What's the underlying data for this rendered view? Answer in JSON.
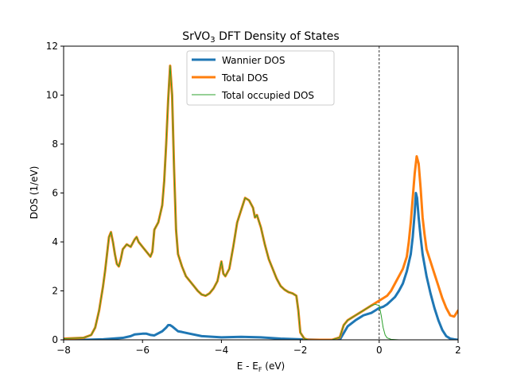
{
  "chart_data": {
    "type": "line",
    "title": "SrVO",
    "title_subscript": "3",
    "title_suffix": " DFT Density of States",
    "xlabel_main": "E - E",
    "xlabel_sub": "F",
    "xlabel_suffix": " (eV)",
    "ylabel": "DOS (1/eV)",
    "xlim": [
      -8,
      2
    ],
    "ylim": [
      0,
      12
    ],
    "xticks": [
      -8,
      -6,
      -4,
      -2,
      0,
      2
    ],
    "xtick_labels": [
      "−8",
      "−6",
      "−4",
      "−2",
      "0",
      "2"
    ],
    "yticks": [
      0,
      2,
      4,
      6,
      8,
      10,
      12
    ],
    "ytick_labels": [
      "0",
      "2",
      "4",
      "6",
      "8",
      "10",
      "12"
    ],
    "fermi_line_x": 0,
    "grid": false,
    "legend_position": "top-center",
    "series": [
      {
        "name": "Wannier DOS",
        "color": "#1f77b4",
        "width": 3,
        "x": [
          -8,
          -7.5,
          -7,
          -6.5,
          -6.3,
          -6.2,
          -6.0,
          -5.9,
          -5.8,
          -5.7,
          -5.5,
          -5.4,
          -5.35,
          -5.3,
          -5.25,
          -5.1,
          -5.0,
          -4.8,
          -4.5,
          -4.0,
          -3.5,
          -3.0,
          -2.5,
          -2.0,
          -1.5,
          -1.0,
          -0.8,
          -0.6,
          -0.5,
          -0.4,
          -0.3,
          -0.2,
          -0.1,
          0,
          0.1,
          0.2,
          0.3,
          0.4,
          0.5,
          0.6,
          0.7,
          0.8,
          0.85,
          0.9,
          0.93,
          0.96,
          1.0,
          1.05,
          1.1,
          1.2,
          1.3,
          1.4,
          1.5,
          1.6,
          1.7,
          1.8,
          1.9,
          2.0
        ],
        "values": [
          0.0,
          0.0,
          0.02,
          0.08,
          0.15,
          0.22,
          0.25,
          0.25,
          0.2,
          0.18,
          0.35,
          0.5,
          0.6,
          0.6,
          0.55,
          0.35,
          0.32,
          0.25,
          0.15,
          0.1,
          0.12,
          0.1,
          0.05,
          0.02,
          0.0,
          0.0,
          0.55,
          0.8,
          0.9,
          1.0,
          1.05,
          1.1,
          1.2,
          1.3,
          1.35,
          1.45,
          1.6,
          1.75,
          2.0,
          2.3,
          2.8,
          3.5,
          4.2,
          5.2,
          6.0,
          5.8,
          5.0,
          4.2,
          3.5,
          2.6,
          1.9,
          1.3,
          0.8,
          0.4,
          0.15,
          0.05,
          0.02,
          0.0
        ]
      },
      {
        "name": "Total DOS",
        "color": "#ff7f0e",
        "width": 3,
        "x": [
          -8,
          -7.5,
          -7.3,
          -7.2,
          -7.1,
          -7.0,
          -6.95,
          -6.9,
          -6.85,
          -6.8,
          -6.75,
          -6.7,
          -6.65,
          -6.6,
          -6.55,
          -6.5,
          -6.4,
          -6.3,
          -6.2,
          -6.15,
          -6.1,
          -6.05,
          -6.0,
          -5.9,
          -5.8,
          -5.75,
          -5.7,
          -5.6,
          -5.5,
          -5.45,
          -5.4,
          -5.35,
          -5.3,
          -5.25,
          -5.2,
          -5.15,
          -5.1,
          -5.0,
          -4.9,
          -4.8,
          -4.7,
          -4.6,
          -4.5,
          -4.4,
          -4.3,
          -4.2,
          -4.1,
          -4.05,
          -4.0,
          -3.95,
          -3.9,
          -3.8,
          -3.7,
          -3.6,
          -3.5,
          -3.4,
          -3.3,
          -3.2,
          -3.15,
          -3.1,
          -3.0,
          -2.9,
          -2.8,
          -2.7,
          -2.6,
          -2.5,
          -2.4,
          -2.3,
          -2.2,
          -2.1,
          -2.05,
          -2.0,
          -1.9,
          -1.8,
          -1.5,
          -1.2,
          -1.0,
          -0.9,
          -0.8,
          -0.7,
          -0.6,
          -0.5,
          -0.4,
          -0.3,
          -0.2,
          -0.1,
          0,
          0.1,
          0.2,
          0.3,
          0.4,
          0.5,
          0.6,
          0.7,
          0.75,
          0.8,
          0.85,
          0.9,
          0.95,
          1.0,
          1.05,
          1.1,
          1.15,
          1.2,
          1.3,
          1.4,
          1.5,
          1.6,
          1.7,
          1.8,
          1.9,
          2.0
        ],
        "values": [
          0.05,
          0.08,
          0.2,
          0.5,
          1.2,
          2.2,
          2.8,
          3.5,
          4.2,
          4.4,
          4.0,
          3.5,
          3.1,
          3.0,
          3.3,
          3.7,
          3.9,
          3.8,
          4.1,
          4.2,
          4.0,
          3.9,
          3.8,
          3.6,
          3.4,
          3.6,
          4.5,
          4.8,
          5.5,
          6.5,
          8.0,
          9.8,
          11.2,
          10.0,
          7.0,
          4.5,
          3.5,
          3.0,
          2.6,
          2.4,
          2.2,
          2.0,
          1.85,
          1.8,
          1.9,
          2.1,
          2.4,
          2.8,
          3.2,
          2.7,
          2.6,
          2.9,
          3.8,
          4.8,
          5.3,
          5.8,
          5.7,
          5.4,
          5.0,
          5.1,
          4.6,
          3.9,
          3.3,
          2.9,
          2.5,
          2.2,
          2.05,
          1.95,
          1.9,
          1.8,
          1.2,
          0.3,
          0.05,
          0.0,
          0.0,
          0.0,
          0.1,
          0.6,
          0.8,
          0.9,
          1.0,
          1.1,
          1.2,
          1.3,
          1.4,
          1.5,
          1.6,
          1.7,
          1.8,
          2.0,
          2.3,
          2.6,
          2.9,
          3.4,
          4.0,
          4.8,
          5.8,
          6.8,
          7.5,
          7.2,
          6.2,
          5.0,
          4.3,
          3.7,
          3.2,
          2.7,
          2.2,
          1.7,
          1.3,
          1.0,
          0.95,
          1.2
        ]
      },
      {
        "name": "Total occupied DOS",
        "color": "#2ca02c",
        "width": 1,
        "x": [
          -8,
          -7.5,
          -7.3,
          -7.2,
          -7.1,
          -7.0,
          -6.95,
          -6.9,
          -6.85,
          -6.8,
          -6.75,
          -6.7,
          -6.65,
          -6.6,
          -6.55,
          -6.5,
          -6.4,
          -6.3,
          -6.2,
          -6.15,
          -6.1,
          -6.05,
          -6.0,
          -5.9,
          -5.8,
          -5.75,
          -5.7,
          -5.6,
          -5.5,
          -5.45,
          -5.4,
          -5.35,
          -5.3,
          -5.25,
          -5.2,
          -5.15,
          -5.1,
          -5.0,
          -4.9,
          -4.8,
          -4.7,
          -4.6,
          -4.5,
          -4.4,
          -4.3,
          -4.2,
          -4.1,
          -4.05,
          -4.0,
          -3.95,
          -3.9,
          -3.8,
          -3.7,
          -3.6,
          -3.5,
          -3.4,
          -3.3,
          -3.2,
          -3.15,
          -3.1,
          -3.0,
          -2.9,
          -2.8,
          -2.7,
          -2.6,
          -2.5,
          -2.4,
          -2.3,
          -2.2,
          -2.1,
          -2.05,
          -2.0,
          -1.9,
          -1.8,
          -1.5,
          -1.2,
          -1.0,
          -0.9,
          -0.8,
          -0.7,
          -0.6,
          -0.5,
          -0.4,
          -0.3,
          -0.2,
          -0.1,
          0,
          0.05,
          0.1,
          0.15,
          0.2,
          0.3,
          0.5,
          1.0,
          2.0
        ],
        "values": [
          0.05,
          0.08,
          0.2,
          0.5,
          1.2,
          2.2,
          2.8,
          3.5,
          4.2,
          4.4,
          4.0,
          3.5,
          3.1,
          3.0,
          3.3,
          3.7,
          3.9,
          3.8,
          4.1,
          4.2,
          4.0,
          3.9,
          3.8,
          3.6,
          3.4,
          3.6,
          4.5,
          4.8,
          5.5,
          6.5,
          8.0,
          9.8,
          11.2,
          10.0,
          7.0,
          4.5,
          3.5,
          3.0,
          2.6,
          2.4,
          2.2,
          2.0,
          1.85,
          1.8,
          1.9,
          2.1,
          2.4,
          2.8,
          3.2,
          2.7,
          2.6,
          2.9,
          3.8,
          4.8,
          5.3,
          5.8,
          5.7,
          5.4,
          5.0,
          5.1,
          4.6,
          3.9,
          3.3,
          2.9,
          2.5,
          2.2,
          2.05,
          1.95,
          1.9,
          1.8,
          1.2,
          0.3,
          0.05,
          0.0,
          0.0,
          0.0,
          0.1,
          0.6,
          0.8,
          0.9,
          1.0,
          1.1,
          1.2,
          1.3,
          1.4,
          1.45,
          1.4,
          1.0,
          0.5,
          0.2,
          0.08,
          0.02,
          0.0,
          0.0,
          0.0
        ]
      }
    ]
  }
}
